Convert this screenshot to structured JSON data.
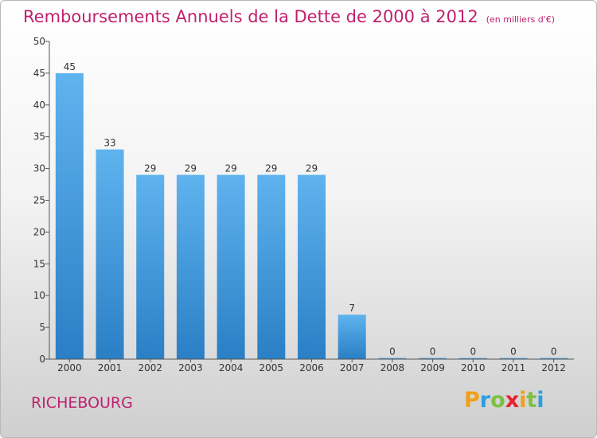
{
  "title": "Remboursements Annuels de la Dette de 2000 à 2012",
  "unit": "(en milliers d'€)",
  "commune": "RICHEBOURG",
  "logo": {
    "text": "Proxiti",
    "letters": [
      {
        "ch": "P",
        "color": "#f0a019"
      },
      {
        "ch": "r",
        "color": "#2b9fe0"
      },
      {
        "ch": "o",
        "color": "#7cc142"
      },
      {
        "ch": "x",
        "color": "#e8222e"
      },
      {
        "ch": "i",
        "color": "#f0a019"
      },
      {
        "ch": "t",
        "color": "#7cc142"
      },
      {
        "ch": "i",
        "color": "#2b9fe0"
      }
    ]
  },
  "colors": {
    "bar_light": "#5fb3ee",
    "bar_dark": "#2a7fc5",
    "title": "#c0206e",
    "axis": "#555555"
  },
  "chart_data": {
    "type": "bar",
    "title": "Remboursements Annuels de la Dette de 2000 à 2012",
    "subtitle": "(en milliers d'€)",
    "categories": [
      "2000",
      "2001",
      "2002",
      "2003",
      "2004",
      "2005",
      "2006",
      "2007",
      "2008",
      "2009",
      "2010",
      "2011",
      "2012"
    ],
    "values": [
      45,
      33,
      29,
      29,
      29,
      29,
      29,
      7,
      0,
      0,
      0,
      0,
      0
    ],
    "value_labels": [
      "45",
      "33",
      "29",
      "29",
      "29",
      "29",
      "29",
      "7",
      "0",
      "0",
      "0",
      "0",
      "0"
    ],
    "ylim": [
      0,
      50
    ],
    "yticks": [
      0,
      5,
      10,
      15,
      20,
      25,
      30,
      35,
      40,
      45,
      50
    ],
    "ytick_labels": [
      "0",
      "5",
      "10",
      "15",
      "20",
      "25",
      "30",
      "35",
      "40",
      "45",
      "50"
    ],
    "xlabel": "",
    "ylabel": "",
    "grid": false,
    "legend": "none"
  }
}
